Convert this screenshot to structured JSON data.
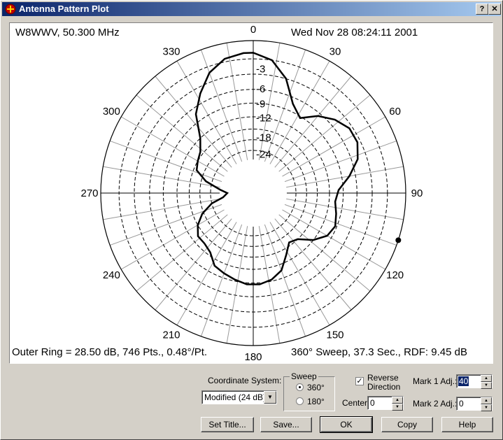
{
  "window": {
    "title": "Antenna Pattern Plot",
    "help_btn": "?",
    "close_btn": "✕"
  },
  "plot": {
    "top_left": "W8WWV, 50.300 MHz",
    "top_right": "Wed Nov 28 08:24:11 2001",
    "bottom_left": "Outer Ring = 28.50 dB, 746 Pts., 0.48°/Pt.",
    "bottom_right": "360° Sweep, 37.3 Sec., RDF: 9.45 dB",
    "angle_labels": [
      "0",
      "30",
      "60",
      "90",
      "120",
      "150",
      "180",
      "210",
      "240",
      "270",
      "300",
      "330"
    ],
    "ring_labels": [
      "3",
      "6",
      "9",
      "12",
      "18",
      "24"
    ]
  },
  "chart_data": {
    "type": "polar-line",
    "title": "",
    "angular_axis_deg": [
      0,
      30,
      60,
      90,
      120,
      150,
      180,
      210,
      240,
      270,
      300,
      330
    ],
    "radial_scale": "Modified (24 dB)",
    "radial_tick_labels_db": [
      -3,
      -6,
      -9,
      -12,
      -18,
      -24
    ],
    "outer_ring_db": 28.5,
    "marker_deg": 108,
    "pattern_points": [
      {
        "deg": 0,
        "r": 0.92
      },
      {
        "deg": 8,
        "r": 0.88
      },
      {
        "deg": 16,
        "r": 0.78
      },
      {
        "deg": 24,
        "r": 0.64
      },
      {
        "deg": 32,
        "r": 0.58
      },
      {
        "deg": 40,
        "r": 0.66
      },
      {
        "deg": 48,
        "r": 0.72
      },
      {
        "deg": 56,
        "r": 0.76
      },
      {
        "deg": 64,
        "r": 0.76
      },
      {
        "deg": 72,
        "r": 0.72
      },
      {
        "deg": 80,
        "r": 0.64
      },
      {
        "deg": 88,
        "r": 0.56
      },
      {
        "deg": 96,
        "r": 0.54
      },
      {
        "deg": 104,
        "r": 0.56
      },
      {
        "deg": 112,
        "r": 0.58
      },
      {
        "deg": 120,
        "r": 0.56
      },
      {
        "deg": 128,
        "r": 0.5
      },
      {
        "deg": 136,
        "r": 0.42
      },
      {
        "deg": 144,
        "r": 0.4
      },
      {
        "deg": 152,
        "r": 0.46
      },
      {
        "deg": 160,
        "r": 0.54
      },
      {
        "deg": 168,
        "r": 0.58
      },
      {
        "deg": 176,
        "r": 0.6
      },
      {
        "deg": 184,
        "r": 0.6
      },
      {
        "deg": 192,
        "r": 0.58
      },
      {
        "deg": 200,
        "r": 0.56
      },
      {
        "deg": 208,
        "r": 0.54
      },
      {
        "deg": 216,
        "r": 0.48
      },
      {
        "deg": 224,
        "r": 0.46
      },
      {
        "deg": 232,
        "r": 0.46
      },
      {
        "deg": 240,
        "r": 0.42
      },
      {
        "deg": 248,
        "r": 0.36
      },
      {
        "deg": 256,
        "r": 0.28
      },
      {
        "deg": 262,
        "r": 0.2
      },
      {
        "deg": 270,
        "r": 0.17
      },
      {
        "deg": 276,
        "r": 0.22
      },
      {
        "deg": 284,
        "r": 0.32
      },
      {
        "deg": 292,
        "r": 0.4
      },
      {
        "deg": 300,
        "r": 0.42
      },
      {
        "deg": 308,
        "r": 0.44
      },
      {
        "deg": 316,
        "r": 0.5
      },
      {
        "deg": 324,
        "r": 0.64
      },
      {
        "deg": 332,
        "r": 0.74
      },
      {
        "deg": 340,
        "r": 0.84
      },
      {
        "deg": 348,
        "r": 0.9
      },
      {
        "deg": 356,
        "r": 0.92
      }
    ]
  },
  "controls": {
    "coord_label": "Coordinate System:",
    "coord_value": "Modified (24 dB)",
    "sweep_label": "Sweep",
    "sweep_360": "360°",
    "sweep_180": "180°",
    "reverse_label_1": "Reverse",
    "reverse_label_2": "Direction",
    "reverse_checked": "✓",
    "center_label": "Center:",
    "center_value": "0",
    "mark1_label": "Mark 1 Adj.:",
    "mark1_value": "40",
    "mark2_label": "Mark 2 Adj.:",
    "mark2_value": "0"
  },
  "buttons": {
    "set_title": "Set Title...",
    "save": "Save...",
    "ok": "OK",
    "copy": "Copy",
    "help": "Help"
  }
}
